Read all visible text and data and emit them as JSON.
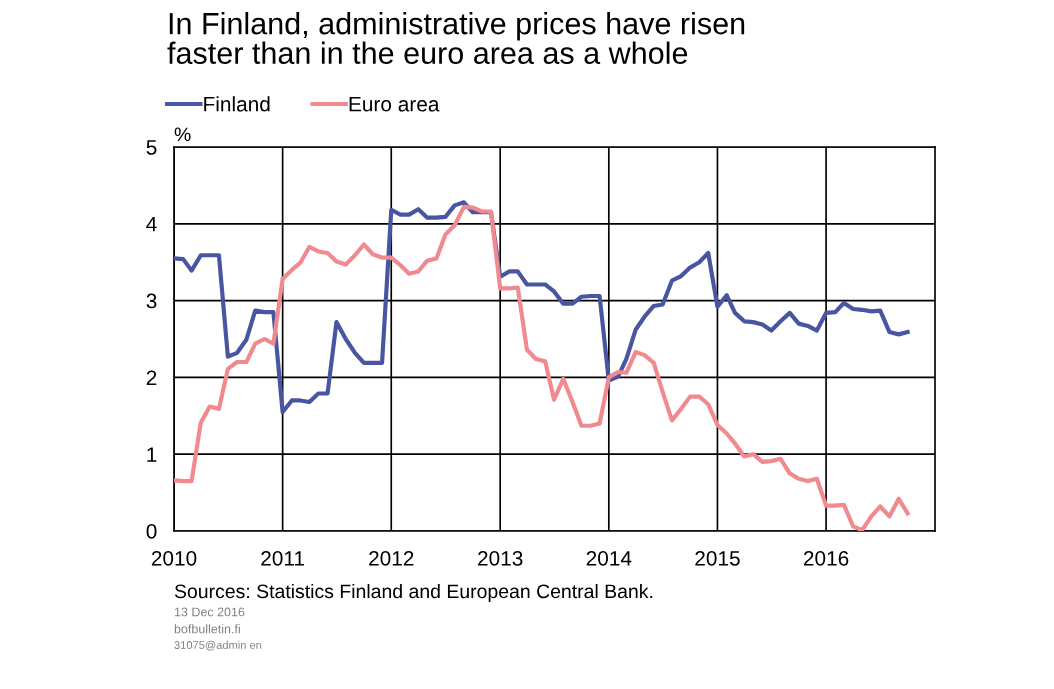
{
  "chart_data": {
    "type": "line",
    "title": "In Finland, administrative prices have risen\nfaster than in the euro area as a whole",
    "ylabel": "%",
    "x": [
      "2010-01",
      "2010-02",
      "2010-03",
      "2010-04",
      "2010-05",
      "2010-06",
      "2010-07",
      "2010-08",
      "2010-09",
      "2010-10",
      "2010-11",
      "2010-12",
      "2011-01",
      "2011-02",
      "2011-03",
      "2011-04",
      "2011-05",
      "2011-06",
      "2011-07",
      "2011-08",
      "2011-09",
      "2011-10",
      "2011-11",
      "2011-12",
      "2012-01",
      "2012-02",
      "2012-03",
      "2012-04",
      "2012-05",
      "2012-06",
      "2012-07",
      "2012-08",
      "2012-09",
      "2012-10",
      "2012-11",
      "2012-12",
      "2013-01",
      "2013-02",
      "2013-03",
      "2013-04",
      "2013-05",
      "2013-06",
      "2013-07",
      "2013-08",
      "2013-09",
      "2013-10",
      "2013-11",
      "2013-12",
      "2014-01",
      "2014-02",
      "2014-03",
      "2014-04",
      "2014-05",
      "2014-06",
      "2014-07",
      "2014-08",
      "2014-09",
      "2014-10",
      "2014-11",
      "2014-12",
      "2015-01",
      "2015-02",
      "2015-03",
      "2015-04",
      "2015-05",
      "2015-06",
      "2015-07",
      "2015-08",
      "2015-09",
      "2015-10",
      "2015-11",
      "2015-12",
      "2016-01",
      "2016-02",
      "2016-03",
      "2016-04",
      "2016-05",
      "2016-06",
      "2016-07",
      "2016-08",
      "2016-09",
      "2016-10"
    ],
    "series": [
      {
        "name": "Finland",
        "color": "#4a55a2",
        "values": [
          3.55,
          3.54,
          3.39,
          3.59,
          3.59,
          3.59,
          2.27,
          2.32,
          2.49,
          2.87,
          2.85,
          2.85,
          1.55,
          1.7,
          1.7,
          1.68,
          1.79,
          1.79,
          2.72,
          2.5,
          2.32,
          2.19,
          2.19,
          2.19,
          4.18,
          4.12,
          4.12,
          4.19,
          4.08,
          4.08,
          4.09,
          4.24,
          4.28,
          4.15,
          4.15,
          4.15,
          3.31,
          3.38,
          3.38,
          3.21,
          3.21,
          3.21,
          3.12,
          2.96,
          2.96,
          3.05,
          3.06,
          3.06,
          1.96,
          2.01,
          2.24,
          2.62,
          2.79,
          2.93,
          2.95,
          3.26,
          3.32,
          3.43,
          3.5,
          3.62,
          2.92,
          3.07,
          2.84,
          2.73,
          2.72,
          2.69,
          2.61,
          2.73,
          2.84,
          2.7,
          2.67,
          2.61,
          2.84,
          2.85,
          2.97,
          2.89,
          2.88,
          2.86,
          2.87,
          2.59,
          2.56,
          2.59
        ]
      },
      {
        "name": "Euro area",
        "color": "#f08a8f",
        "values": [
          0.66,
          0.65,
          0.65,
          1.41,
          1.62,
          1.59,
          2.11,
          2.2,
          2.2,
          2.44,
          2.5,
          2.44,
          3.28,
          3.4,
          3.49,
          3.7,
          3.64,
          3.62,
          3.51,
          3.47,
          3.59,
          3.73,
          3.6,
          3.56,
          3.56,
          3.46,
          3.35,
          3.38,
          3.52,
          3.55,
          3.86,
          3.98,
          4.22,
          4.21,
          4.16,
          4.16,
          3.16,
          3.16,
          3.17,
          2.36,
          2.24,
          2.21,
          1.71,
          1.98,
          1.68,
          1.37,
          1.37,
          1.4,
          2.0,
          2.07,
          2.06,
          2.33,
          2.29,
          2.19,
          1.81,
          1.44,
          1.59,
          1.75,
          1.75,
          1.65,
          1.38,
          1.27,
          1.14,
          0.97,
          1.0,
          0.9,
          0.91,
          0.94,
          0.75,
          0.68,
          0.65,
          0.68,
          0.33,
          0.33,
          0.34,
          0.06,
          0.01,
          0.19,
          0.32,
          0.19,
          0.42,
          0.23
        ]
      }
    ],
    "xlim": [
      "2010-01",
      "2017-01"
    ],
    "xticks": [
      {
        "value": "2010-01",
        "label": "2010"
      },
      {
        "value": "2011-01",
        "label": "2011"
      },
      {
        "value": "2012-01",
        "label": "2012"
      },
      {
        "value": "2013-01",
        "label": "2013"
      },
      {
        "value": "2014-01",
        "label": "2014"
      },
      {
        "value": "2015-01",
        "label": "2015"
      },
      {
        "value": "2016-01",
        "label": "2016"
      }
    ],
    "ylim": [
      0,
      5
    ],
    "yticks": [
      0,
      1,
      2,
      3,
      4,
      5
    ],
    "grid": true,
    "legend": "top left",
    "line_style": "solid",
    "marker": "none",
    "annotations": [
      "Sources: Statistics Finland and European Central Bank.",
      "13 Dec 2016",
      "bofbulletin.fi",
      "31075@admin en"
    ]
  }
}
